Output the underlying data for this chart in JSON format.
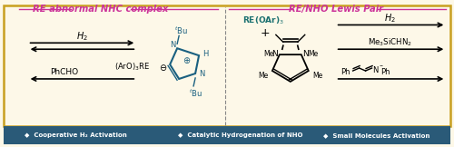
{
  "bg_color": "#fdf8e8",
  "border_color": "#c8a020",
  "banner_color": "#2a5a78",
  "banner_text_color": "#ffffff",
  "title_left": "RE abnormal NHC complex",
  "title_right": "RE/NHO Lewis Pair",
  "title_color": "#cc3399",
  "banner_items": [
    "◆  Cooperative H₂ Activation",
    "◆  Catalytic Hydrogenation of NHO",
    "◆  Small Molecules Activation"
  ],
  "nhc_color": "#1a6080",
  "re_color": "#1a7070"
}
